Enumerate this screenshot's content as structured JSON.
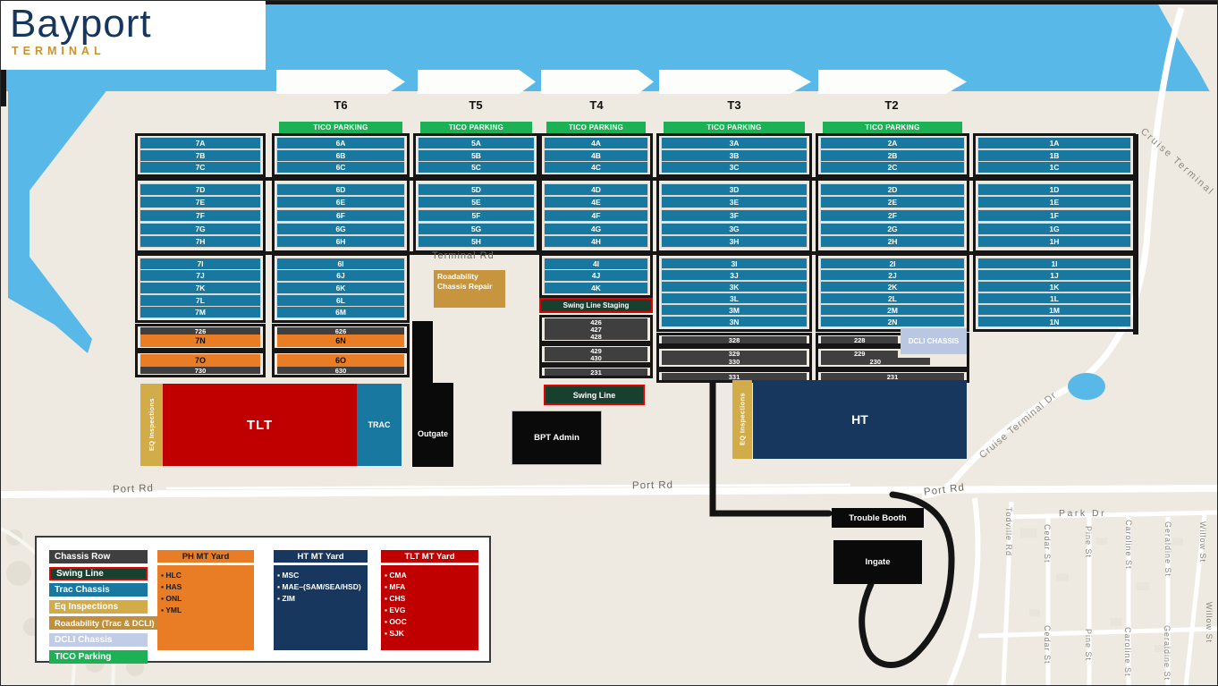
{
  "logo": {
    "title": "Bayport",
    "subtitle": "TERMINAL"
  },
  "terminals": [
    "T6",
    "T5",
    "T4",
    "T3",
    "T2"
  ],
  "labels": {
    "tico_parking": "TICO PARKING",
    "swing_line_staging": "Swing Line Staging",
    "swing_line": "Swing Line",
    "terminal_rd": "Terminal  Rd",
    "roadability": "Roadability  Chassis Repair",
    "dcli_chassis": "DCLI CHASSIS",
    "eq_inspections": "EQ Inspections",
    "tlt": "TLT",
    "trac": "TRAC",
    "outgate": "Outgate",
    "bpt_admin": "BPT Admin",
    "ht": "HT",
    "trouble_booth": "Trouble Booth",
    "ingate": "Ingate"
  },
  "roads": {
    "port_rd": "Port Rd",
    "park_dr": "Park Dr",
    "cruise_terminal": "Cruise Terminal",
    "cruise_terminal_dr": "Cruise Terminal Dr",
    "streets_upper": [
      "Todville Rd",
      "Cedar St",
      "Pine St",
      "Caroline St",
      "Geraldine St",
      "Willow St"
    ],
    "streets_lower": [
      "Cedar St",
      "Pine St",
      "Caroline St",
      "Geraldine St",
      "Willow St"
    ]
  },
  "blocks": [
    {
      "id": "b7",
      "tico": false,
      "groups": [
        [
          "7A",
          "7B",
          "7C"
        ],
        [
          "7D",
          "7E",
          "7F",
          "7G",
          "7H"
        ],
        [
          "7I",
          "7J",
          "7K",
          "7L",
          "7M"
        ],
        [
          {
            "l": "726",
            "t": "gray"
          },
          {
            "l": "7N",
            "t": "orange"
          }
        ],
        [
          {
            "l": "7O",
            "t": "orange"
          },
          {
            "l": "730",
            "t": "gray"
          }
        ]
      ]
    },
    {
      "id": "b6",
      "tico": true,
      "groups": [
        [
          "6A",
          "6B",
          "6C"
        ],
        [
          "6D",
          "6E",
          "6F",
          "6G",
          "6H"
        ],
        [
          "6I",
          "6J",
          "6K",
          "6L",
          "6M"
        ],
        [
          {
            "l": "626",
            "t": "gray"
          },
          {
            "l": "6N",
            "t": "orange"
          }
        ],
        [
          {
            "l": "6O",
            "t": "orange"
          },
          {
            "l": "630",
            "t": "gray"
          }
        ]
      ]
    },
    {
      "id": "b5",
      "tico": true,
      "groups": [
        [
          "5A",
          "5B",
          "5C"
        ],
        [
          "5D",
          "5E",
          "5F",
          "5G",
          "5H"
        ]
      ]
    },
    {
      "id": "b4",
      "tico": true,
      "groups": [
        [
          "4A",
          "4B",
          "4C"
        ],
        [
          "4D",
          "4E",
          "4F",
          "4G",
          "4H"
        ],
        [
          "4I",
          "4J",
          "4K"
        ],
        {
          "kind": "staging"
        },
        [
          {
            "l": "426",
            "t": "gray"
          },
          {
            "l": "427",
            "t": "gray"
          },
          {
            "l": "428",
            "t": "gray"
          }
        ],
        [
          {
            "l": "429",
            "t": "gray"
          },
          {
            "l": "430",
            "t": "gray"
          }
        ],
        [
          {
            "l": "231",
            "t": "gray"
          }
        ]
      ]
    },
    {
      "id": "b3",
      "tico": true,
      "groups": [
        [
          "3A",
          "3B",
          "3C"
        ],
        [
          "3D",
          "3E",
          "3F",
          "3G",
          "3H"
        ],
        [
          "3I",
          "3J",
          "3K",
          "3L",
          "3M",
          "3N"
        ],
        [
          {
            "l": "328",
            "t": "gray"
          }
        ],
        [
          {
            "l": "329",
            "t": "gray"
          },
          {
            "l": "330",
            "t": "gray"
          }
        ],
        [
          {
            "l": "331",
            "t": "gray"
          }
        ]
      ]
    },
    {
      "id": "b2",
      "tico": true,
      "groups": [
        [
          "2A",
          "2B",
          "2C"
        ],
        [
          "2D",
          "2E",
          "2F",
          "2G",
          "2H"
        ],
        [
          "2I",
          "2J",
          "2K",
          "2L",
          "2M",
          "2N"
        ],
        [
          {
            "l": "228",
            "t": "gray",
            "w": "54%"
          }
        ],
        [
          {
            "l": "229",
            "t": "gray",
            "w": "54%"
          },
          {
            "l": "230",
            "t": "gray",
            "w": "76%"
          }
        ],
        [
          {
            "l": "231",
            "t": "gray"
          }
        ]
      ]
    },
    {
      "id": "b1",
      "tico": false,
      "groups": [
        [
          "1A",
          "1B",
          "1C"
        ],
        [
          "1D",
          "1E",
          "1F",
          "1G",
          "1H"
        ],
        [
          "1I",
          "1J",
          "1K",
          "1L",
          "1M",
          "1N"
        ]
      ]
    }
  ],
  "legend": {
    "rows": [
      {
        "label": "Chassis Row",
        "bg": "#3f3f3f",
        "fg": "#ffffff"
      },
      {
        "label": "Swing Line",
        "bg": "#18402f",
        "fg": "#ffffff",
        "border": "#e30000"
      },
      {
        "label": "Trac Chassis",
        "bg": "#1878a0",
        "fg": "#ffffff"
      },
      {
        "label": "Eq Inspections",
        "bg": "#d2ac49",
        "fg": "#ffffff"
      },
      {
        "label": "Roadability (Trac & DCLI)",
        "bg": "#bf8f3d",
        "fg": "#ffffff"
      },
      {
        "label": "DCLI Chassis",
        "bg": "#c1cce6",
        "fg": "#ffffff"
      },
      {
        "label": "TICO Parking",
        "bg": "#1db155",
        "fg": "#ffffff"
      }
    ],
    "yards": [
      {
        "title": "PH MT Yard",
        "bg": "#e87d25",
        "fg": "#1a1a1a",
        "items": [
          "HLC",
          "HAS",
          "ONL",
          "YML"
        ]
      },
      {
        "title": "HT MT Yard",
        "bg": "#17375e",
        "fg": "#ffffff",
        "items": [
          "MSC",
          "MAE–(SAM/SEA/HSD)",
          "ZIM"
        ]
      },
      {
        "title": "TLT MT Yard",
        "bg": "#c00000",
        "fg": "#ffffff",
        "items": [
          "CMA",
          "MFA",
          "CHS",
          "EVG",
          "OOC",
          "SJK"
        ]
      }
    ]
  }
}
